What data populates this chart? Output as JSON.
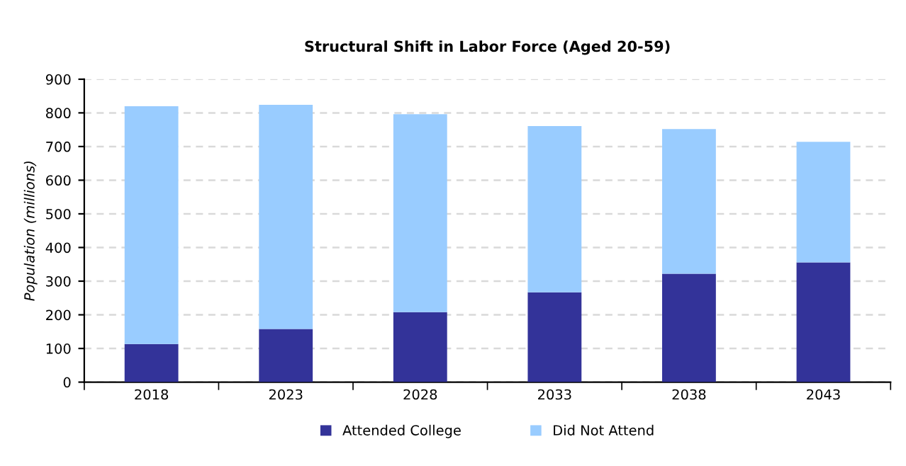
{
  "chart_data": {
    "type": "bar",
    "title": "Structural Shift in Labor Force (Aged 20-59)",
    "ylabel": "Population (millions)",
    "categories": [
      "2018",
      "2023",
      "2028",
      "2033",
      "2038",
      "2043"
    ],
    "series": [
      {
        "name": "Attended College",
        "color": "#333399",
        "values": [
          113,
          158,
          208,
          267,
          322,
          356
        ]
      },
      {
        "name": "Did Not Attend",
        "color": "#99ccff",
        "values": [
          707,
          666,
          588,
          494,
          430,
          358
        ]
      }
    ],
    "stacked": true,
    "ylim": [
      0,
      900
    ],
    "yticks": [
      0,
      100,
      200,
      300,
      400,
      500,
      600,
      700,
      800,
      900
    ],
    "grid": "y",
    "legend": "bottom"
  }
}
